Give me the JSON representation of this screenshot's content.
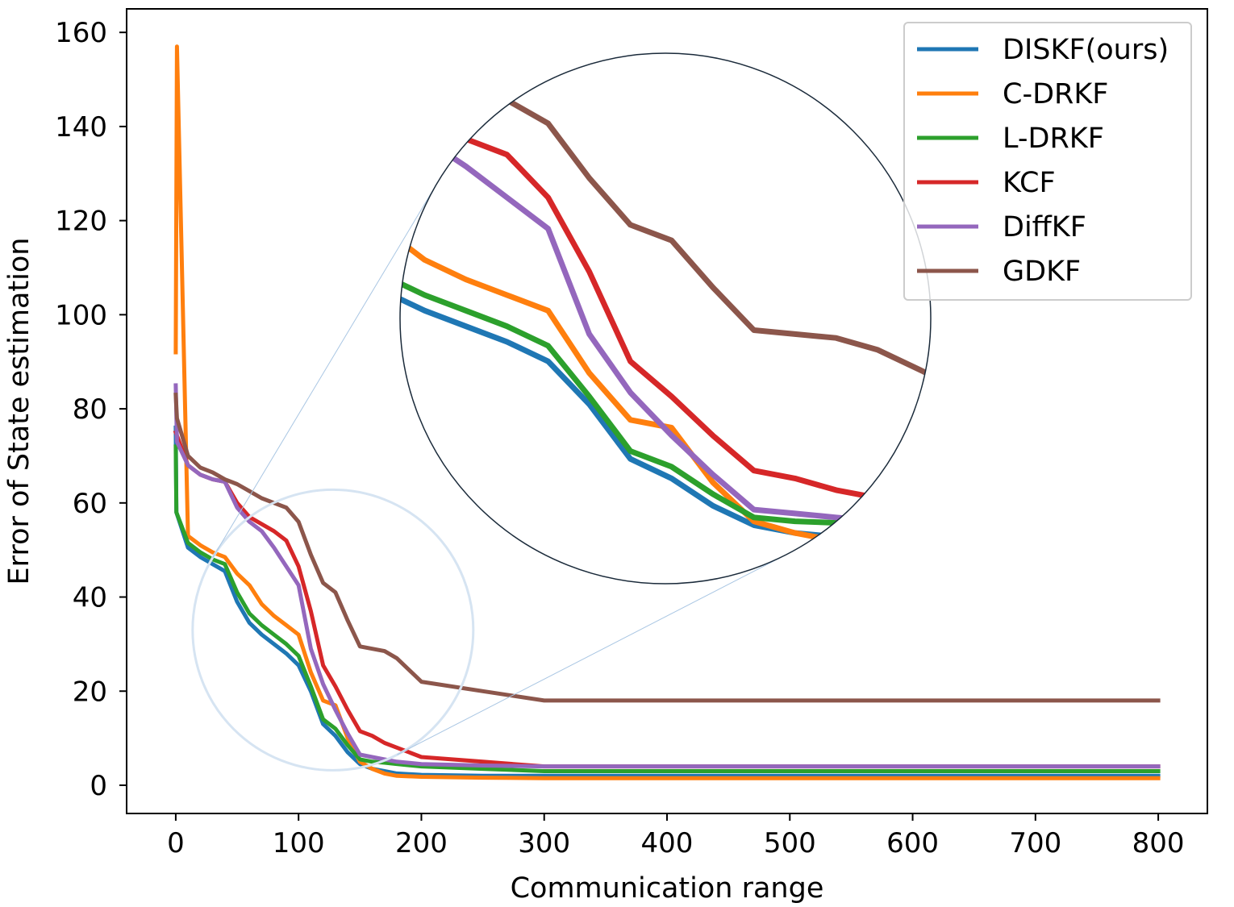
{
  "chart_data": {
    "type": "line",
    "title": "",
    "xlabel": "Communication range",
    "ylabel": "Error of State estimation",
    "xlim": [
      -40,
      840
    ],
    "ylim": [
      -6,
      165
    ],
    "xticks": [
      0,
      100,
      200,
      300,
      400,
      500,
      600,
      700,
      800
    ],
    "yticks": [
      0,
      20,
      40,
      60,
      80,
      100,
      120,
      140,
      160
    ],
    "legend_position": "top-right",
    "inset": {
      "description": "circular zoom of the region around x = 130, y = 33",
      "source_center": [
        128,
        33
      ],
      "x_range": [
        64,
        193
      ],
      "y_range": [
        -3,
        65
      ]
    },
    "series": [
      {
        "name": "DISKF(ours)",
        "color": "#1f77b4",
        "x": [
          0,
          0.5,
          10,
          20,
          30,
          40,
          50,
          60,
          70,
          80,
          90,
          100,
          110,
          120,
          130,
          140,
          150,
          160,
          170,
          180,
          200,
          250,
          300,
          400,
          500,
          600,
          700,
          800
        ],
        "y": [
          76,
          58,
          50.5,
          48.5,
          47,
          45.5,
          39,
          34.5,
          32,
          30,
          28,
          25.5,
          20,
          13,
          10.5,
          7,
          4.5,
          3.5,
          3,
          2.5,
          2.2,
          2,
          2,
          2,
          2,
          2,
          2,
          2
        ]
      },
      {
        "name": "C-DRKF",
        "color": "#ff7f0e",
        "x": [
          0,
          1,
          10,
          20,
          30,
          40,
          50,
          60,
          70,
          80,
          90,
          100,
          110,
          120,
          130,
          140,
          150,
          160,
          170,
          180,
          200,
          250,
          300,
          400,
          500,
          600,
          700,
          800
        ],
        "y": [
          92,
          157,
          53,
          51,
          49.5,
          48.5,
          45,
          42.5,
          38.5,
          36,
          34,
          32,
          24,
          18,
          17,
          10,
          5,
          3.5,
          2.5,
          2,
          1.8,
          1.6,
          1.5,
          1.5,
          1.5,
          1.5,
          1.5,
          1.5
        ]
      },
      {
        "name": "L-DRKF",
        "color": "#2ca02c",
        "x": [
          0,
          0.5,
          10,
          20,
          30,
          40,
          50,
          60,
          70,
          80,
          90,
          100,
          110,
          120,
          130,
          140,
          150,
          160,
          170,
          180,
          200,
          250,
          300,
          400,
          500,
          600,
          700,
          800
        ],
        "y": [
          72,
          58,
          51.5,
          49.5,
          48,
          47,
          41,
          36.5,
          34,
          32,
          30,
          27.5,
          21,
          14,
          12,
          8.5,
          5.5,
          5,
          4.8,
          4.5,
          4,
          3.5,
          3,
          3,
          3,
          3,
          3,
          3
        ]
      },
      {
        "name": "KCF",
        "color": "#d62728",
        "x": [
          0,
          10,
          20,
          30,
          40,
          50,
          60,
          70,
          80,
          90,
          100,
          110,
          120,
          130,
          140,
          150,
          160,
          170,
          180,
          190,
          200,
          250,
          300,
          400,
          500,
          600,
          700,
          800
        ],
        "y": [
          75,
          68,
          66,
          65,
          64.5,
          60,
          57,
          55.5,
          54,
          52,
          46.5,
          37,
          25.5,
          21,
          16,
          11.5,
          10.5,
          9,
          8,
          7,
          6,
          5,
          4,
          4,
          4,
          4,
          4,
          4
        ]
      },
      {
        "name": "DiffKF",
        "color": "#9467bd",
        "x": [
          0,
          1,
          10,
          20,
          30,
          40,
          50,
          60,
          70,
          80,
          90,
          100,
          110,
          120,
          130,
          140,
          150,
          160,
          170,
          180,
          200,
          250,
          300,
          400,
          500,
          600,
          700,
          800
        ],
        "y": [
          85,
          73,
          68,
          66,
          65,
          64.5,
          59,
          56,
          54,
          50.5,
          46.5,
          42.5,
          29,
          21.5,
          16,
          11,
          6.5,
          6,
          5.5,
          5,
          4.5,
          4.2,
          4,
          4,
          4,
          4,
          4,
          4
        ]
      },
      {
        "name": "GDKF",
        "color": "#8c564b",
        "x": [
          0,
          1,
          10,
          20,
          30,
          40,
          50,
          60,
          70,
          80,
          90,
          100,
          110,
          120,
          130,
          140,
          150,
          160,
          170,
          180,
          200,
          250,
          300,
          400,
          500,
          600,
          700,
          800
        ],
        "y": [
          83,
          78,
          70,
          67.5,
          66.5,
          65,
          64,
          62.5,
          61,
          60,
          59,
          56,
          49,
          43,
          41,
          35,
          29.5,
          29,
          28.5,
          27,
          22,
          20,
          18,
          18,
          18,
          18,
          18,
          18
        ]
      }
    ]
  }
}
